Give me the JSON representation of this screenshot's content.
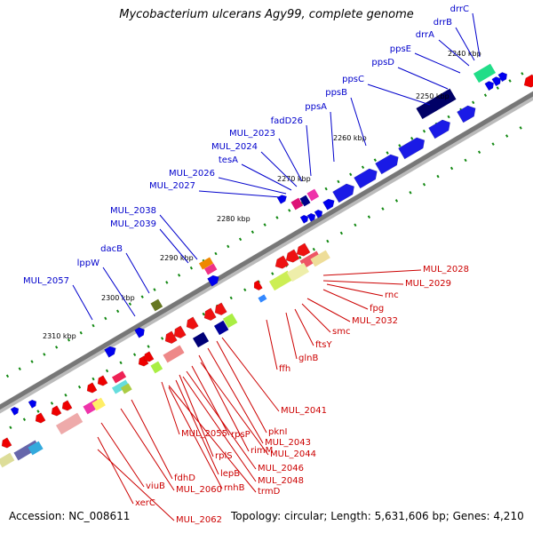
{
  "title": "Mycobacterium ulcerans Agy99, complete genome",
  "footer": {
    "accession_label": "Accession:",
    "accession": "NC_008611",
    "topology_label": "Topology:",
    "topology": "circular",
    "length_label": "Length:",
    "length": "5,631,606 bp",
    "genes_label": "Genes:",
    "genes": "4,210"
  },
  "colors": {
    "forward_label": "#0000cc",
    "reverse_label": "#cc0000",
    "backbone": "#888888",
    "forward_gene": "#0000ee",
    "reverse_gene": "#ee0000",
    "gc_dots": "#118811"
  },
  "kbp_ticks": [
    "2240 kbp",
    "2250 kbp",
    "2260 kbp",
    "2270 kbp",
    "2280 kbp",
    "2290 kbp",
    "2300 kbp",
    "2310 kbp"
  ],
  "forward_labels": [
    "drrC",
    "drrB",
    "drrA",
    "ppsE",
    "ppsD",
    "ppsC",
    "ppsB",
    "ppsA",
    "fadD26",
    "MUL_2023",
    "MUL_2024",
    "tesA",
    "MUL_2026",
    "MUL_2027",
    "MUL_2038",
    "MUL_2039",
    "dacB",
    "lppW",
    "MUL_2057"
  ],
  "reverse_labels": [
    "MUL_2028",
    "MUL_2029",
    "rnc",
    "fpg",
    "MUL_2032",
    "smc",
    "ftsY",
    "glnB",
    "ffh",
    "MUL_2041",
    "pknI",
    "MUL_2043",
    "rimM",
    "MUL_2044",
    "rpsP",
    "MUL_2046",
    "MUL_2055",
    "rplS",
    "MUL_2048",
    "lepB",
    "trmD",
    "rnhB",
    "fdhD",
    "MUL_2060",
    "viuB",
    "xerC",
    "MUL_2062"
  ]
}
